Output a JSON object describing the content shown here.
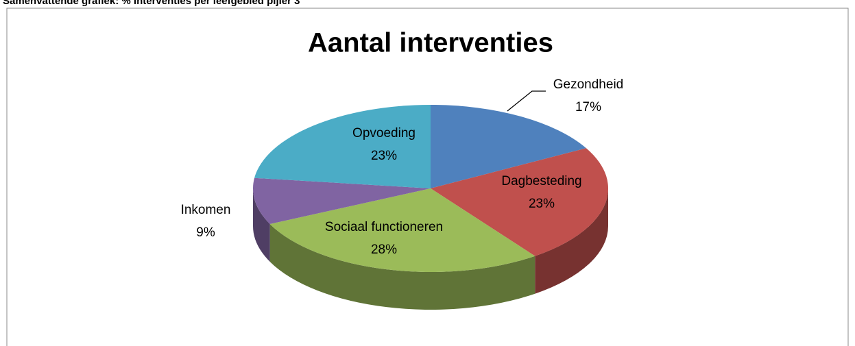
{
  "header": "Samenvattende grafiek: % interventies per leefgebied pijler 3",
  "chart_data": {
    "type": "pie",
    "title": "Aantal interventies",
    "categories": [
      "Gezondheid",
      "Dagbesteding",
      "Sociaal functioneren",
      "Inkomen",
      "Opvoeding"
    ],
    "values": [
      17,
      23,
      28,
      9,
      23
    ],
    "value_labels": [
      "17%",
      "23%",
      "28%",
      "9%",
      "23%"
    ],
    "colors": [
      "#4f81bd",
      "#c0504d",
      "#9bbb59",
      "#8064a2",
      "#4bacc6"
    ]
  }
}
